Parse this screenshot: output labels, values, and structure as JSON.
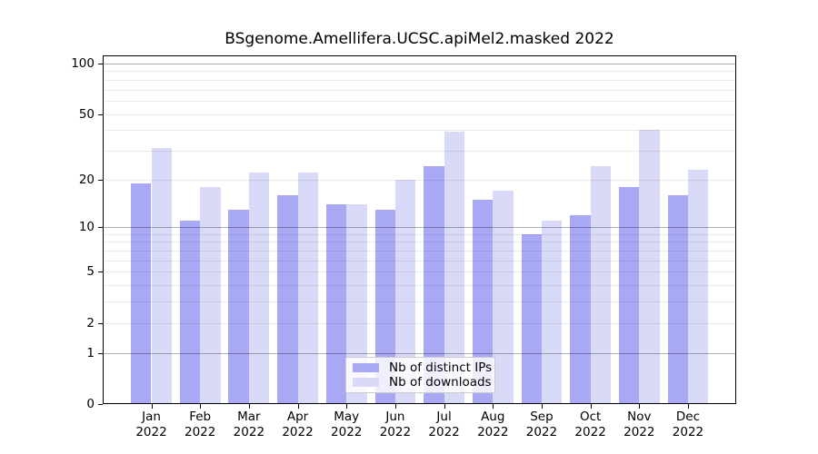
{
  "chart_data": {
    "type": "bar",
    "title": "BSgenome.Amellifera.UCSC.apiMel2.masked 2022",
    "categories": [
      "Jan",
      "Feb",
      "Mar",
      "Apr",
      "May",
      "Jun",
      "Jul",
      "Aug",
      "Sep",
      "Oct",
      "Nov",
      "Dec"
    ],
    "x_year": "2022",
    "series": [
      {
        "name": "Nb of distinct IPs",
        "color": "#a8a8f5",
        "values": [
          19,
          11,
          13,
          16,
          14,
          13,
          24,
          15,
          9,
          12,
          18,
          16
        ]
      },
      {
        "name": "Nb of downloads",
        "color": "#d9d9f8",
        "values": [
          31,
          18,
          22,
          22,
          14,
          20,
          39,
          17,
          11,
          24,
          40,
          23
        ]
      }
    ],
    "yscale": "log1p",
    "yticks": [
      0,
      1,
      2,
      5,
      10,
      20,
      50,
      100
    ],
    "ytick_labels": [
      "0",
      "1",
      "2",
      "5",
      "10",
      "20",
      "50",
      "100"
    ],
    "minor_gridlines": [
      2,
      3,
      4,
      5,
      6,
      7,
      8,
      9,
      20,
      30,
      40,
      50,
      60,
      70,
      80,
      90
    ],
    "decade_gridlines": [
      1,
      10,
      100
    ],
    "ylim": [
      0,
      112
    ],
    "grid": true,
    "legend": {
      "labels": [
        "Nb of distinct IPs",
        "Nb of downloads"
      ],
      "position": "lower center"
    },
    "colors": {
      "background": "#ffffff",
      "axis": "#000000",
      "grid_minor": "rgba(0,0,0,0.08)",
      "grid_decade": "rgba(0,0,0,0.31)"
    }
  }
}
